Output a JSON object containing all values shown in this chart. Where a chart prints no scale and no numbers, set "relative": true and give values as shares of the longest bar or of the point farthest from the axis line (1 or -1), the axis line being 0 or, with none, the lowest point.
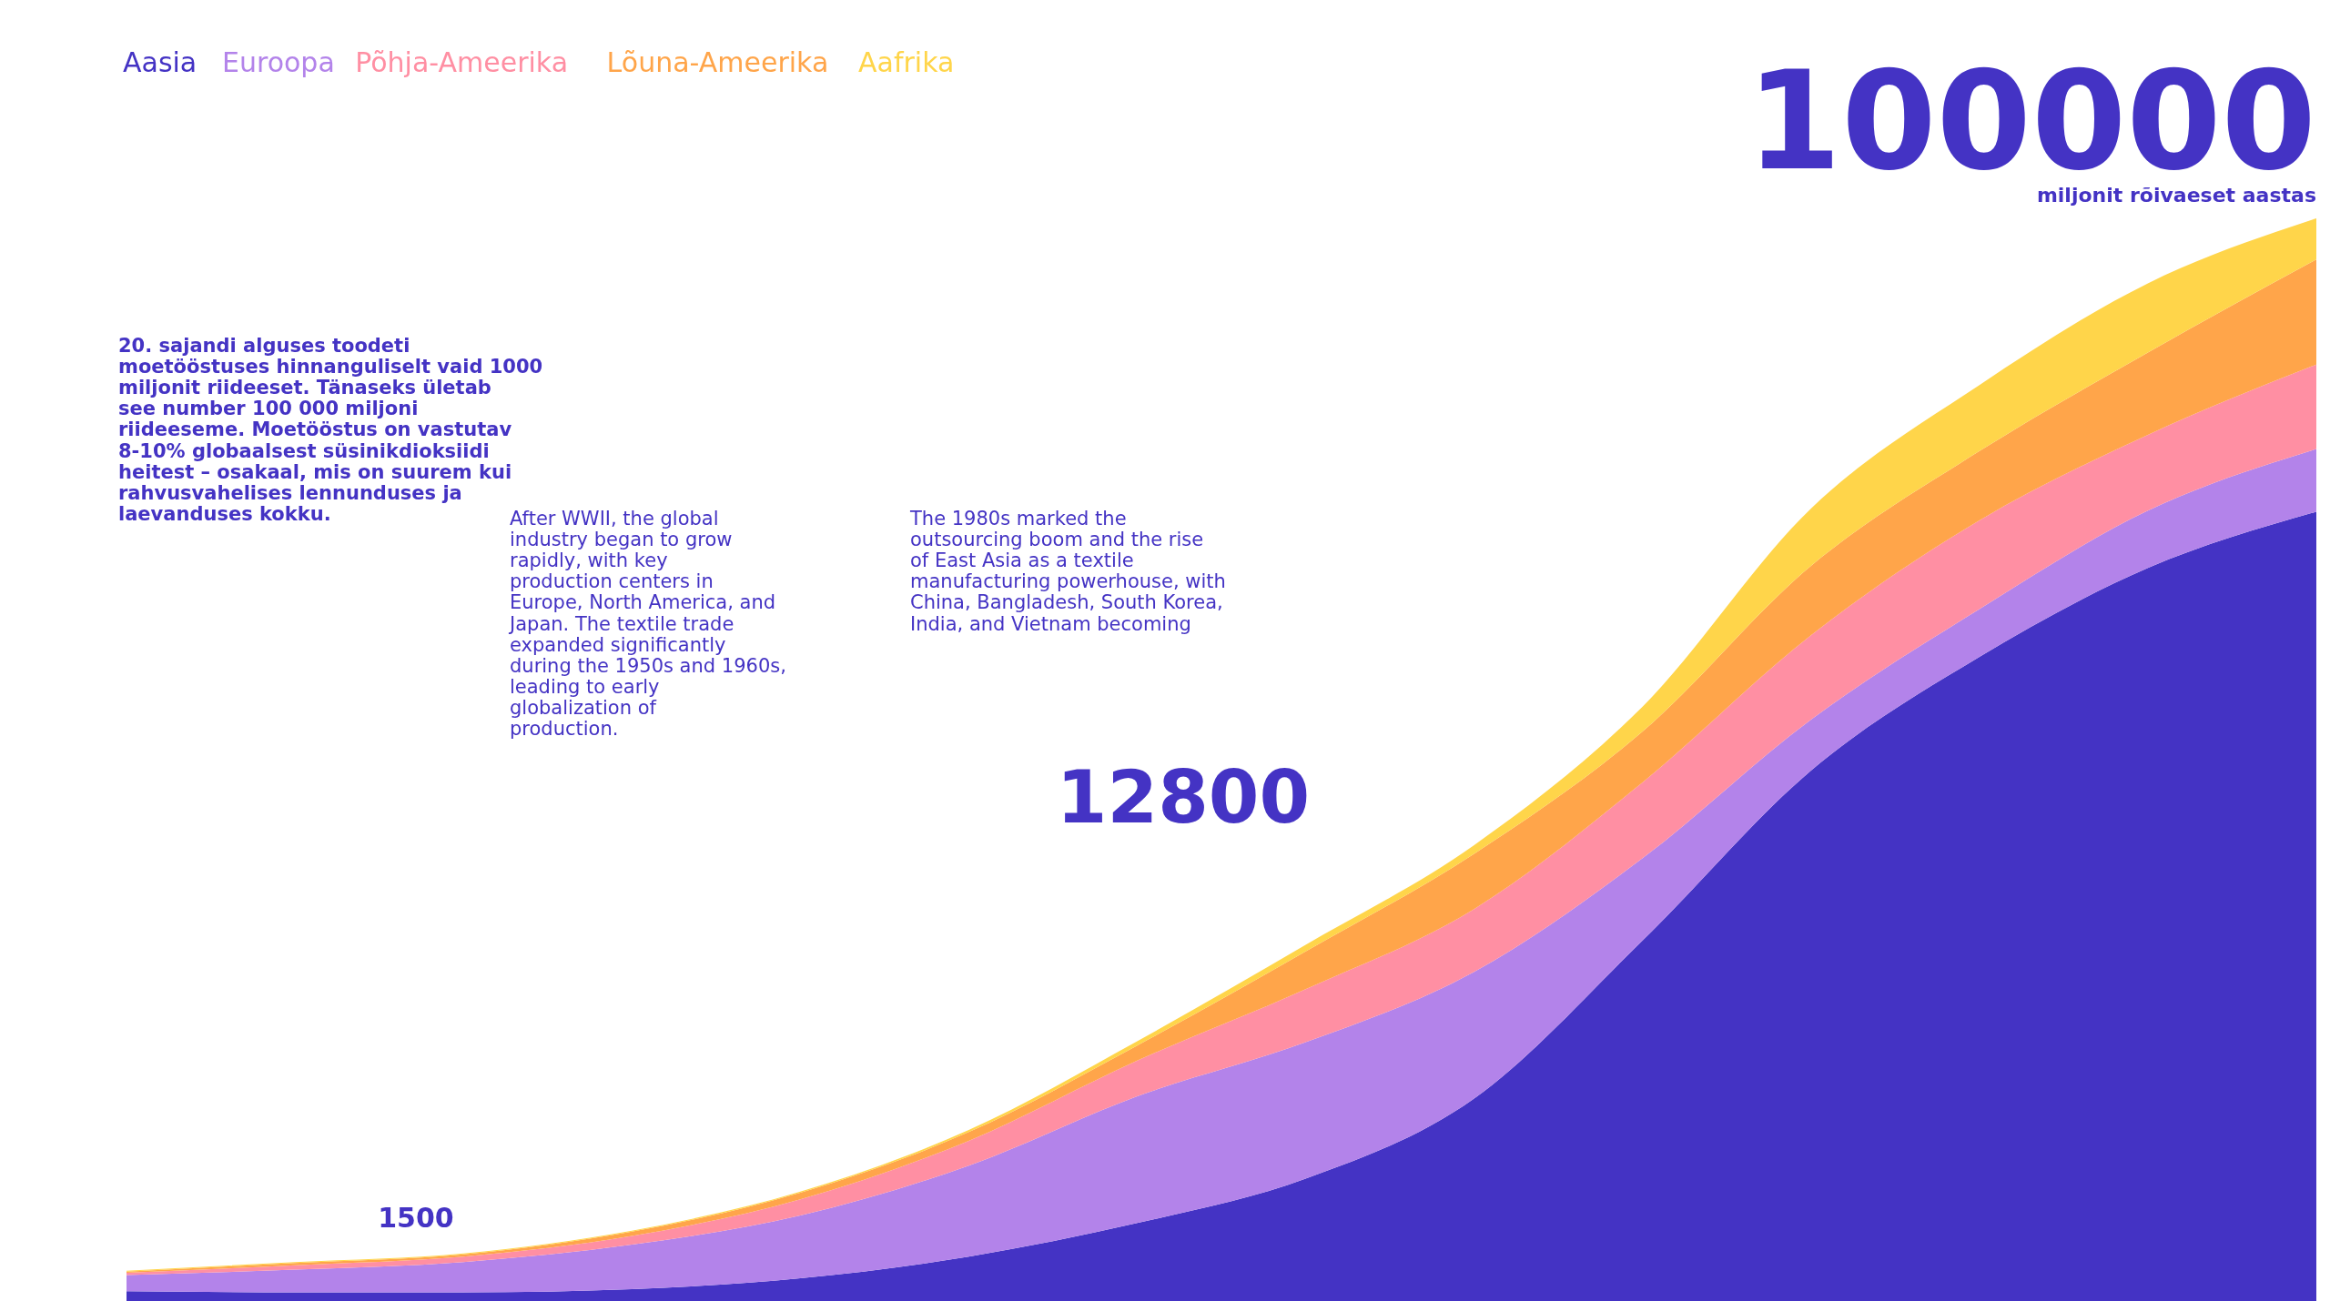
{
  "chart_data": {
    "type": "area",
    "stacked": true,
    "relative": true,
    "legend": "top left",
    "categories": [
      null,
      null,
      null,
      null,
      null,
      null,
      null,
      null,
      null,
      null,
      null,
      null,
      null,
      null
    ],
    "series": [
      {
        "name": "Aasia",
        "color": "#4433c4",
        "values": [
          0.009,
          0.008,
          0.008,
          0.011,
          0.021,
          0.041,
          0.072,
          0.113,
          0.187,
          0.333,
          0.49,
          0.595,
          0.677,
          0.729
        ]
      },
      {
        "name": "Euroopa",
        "color": "#b383ea",
        "values": [
          0.015,
          0.021,
          0.028,
          0.041,
          0.058,
          0.084,
          0.117,
          0.126,
          0.117,
          0.076,
          0.047,
          0.044,
          0.053,
          0.058
        ]
      },
      {
        "name": "Põhja-Ameerika",
        "color": "#ff8fa3",
        "values": [
          0.002,
          0.004,
          0.005,
          0.008,
          0.015,
          0.023,
          0.033,
          0.049,
          0.058,
          0.07,
          0.078,
          0.082,
          0.07,
          0.078
        ]
      },
      {
        "name": "Lõuna-Ameerika",
        "color": "#ffa54a",
        "values": [
          0.001,
          0.002,
          0.002,
          0.004,
          0.006,
          0.008,
          0.014,
          0.035,
          0.051,
          0.047,
          0.064,
          0.064,
          0.076,
          0.097
        ]
      },
      {
        "name": "Aafrika",
        "color": "#ffd54a",
        "values": [
          0.001,
          0.001,
          0.001,
          0.001,
          0.001,
          0.002,
          0.004,
          0.006,
          0.008,
          0.023,
          0.053,
          0.061,
          0.064,
          0.038
        ]
      }
    ],
    "annotations": [
      "1500",
      "12800",
      "100000",
      "miljonit rõivaeset aastas",
      "20. sajandi alguses toodeti moetööstuses hinnanguliselt vaid 1000 miljonit riideeset. Tänaseks ületab see number 100 000 miljoni riideeseme. Moetööstus on vastutav 8-10% globaalsest süsinikdioksiidi heitest – osakaal, mis on suurem kui rahvusvahelises lennunduses ja laevanduses kokku.",
      "After WWII, the global industry began to grow rapidly, with key production centers in Europe, North America, and Japan. The textile trade expanded significantly during the 1950s and 1960s, leading to early globalization of production.",
      "The 1980s marked the outsourcing boom and the rise of East Asia as a textile manufacturing powerhouse, with China, Bangladesh, South Korea, India, and Vietnam becoming"
    ]
  }
}
